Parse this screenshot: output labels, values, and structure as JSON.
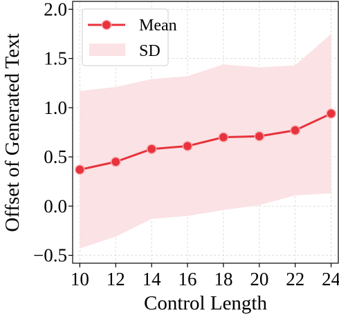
{
  "chart_data": {
    "type": "line",
    "title": "",
    "xlabel": "Control Length",
    "ylabel": "Offset of Generated Text",
    "x": [
      10,
      12,
      14,
      16,
      18,
      20,
      22,
      24
    ],
    "xlim": [
      9.6,
      24.4
    ],
    "ylim": [
      -0.58,
      2.08
    ],
    "xticks": [
      10,
      12,
      14,
      16,
      18,
      20,
      22,
      24
    ],
    "yticks": [
      -0.5,
      0.0,
      0.5,
      1.0,
      1.5,
      2.0
    ],
    "ytick_labels": [
      "−0.5",
      "0.0",
      "0.5",
      "1.0",
      "1.5",
      "2.0"
    ],
    "grid": true,
    "legend_position": "top-left",
    "series": [
      {
        "name": "Mean",
        "values": [
          0.37,
          0.45,
          0.58,
          0.61,
          0.7,
          0.71,
          0.77,
          0.94
        ],
        "color": "#e8323c",
        "marker": "circle"
      }
    ],
    "band": {
      "name": "SD",
      "upper": [
        1.17,
        1.21,
        1.29,
        1.32,
        1.44,
        1.41,
        1.43,
        1.75
      ],
      "lower": [
        -0.43,
        -0.31,
        -0.13,
        -0.1,
        -0.04,
        0.01,
        0.11,
        0.13
      ],
      "color": "#fbe2e4"
    }
  }
}
